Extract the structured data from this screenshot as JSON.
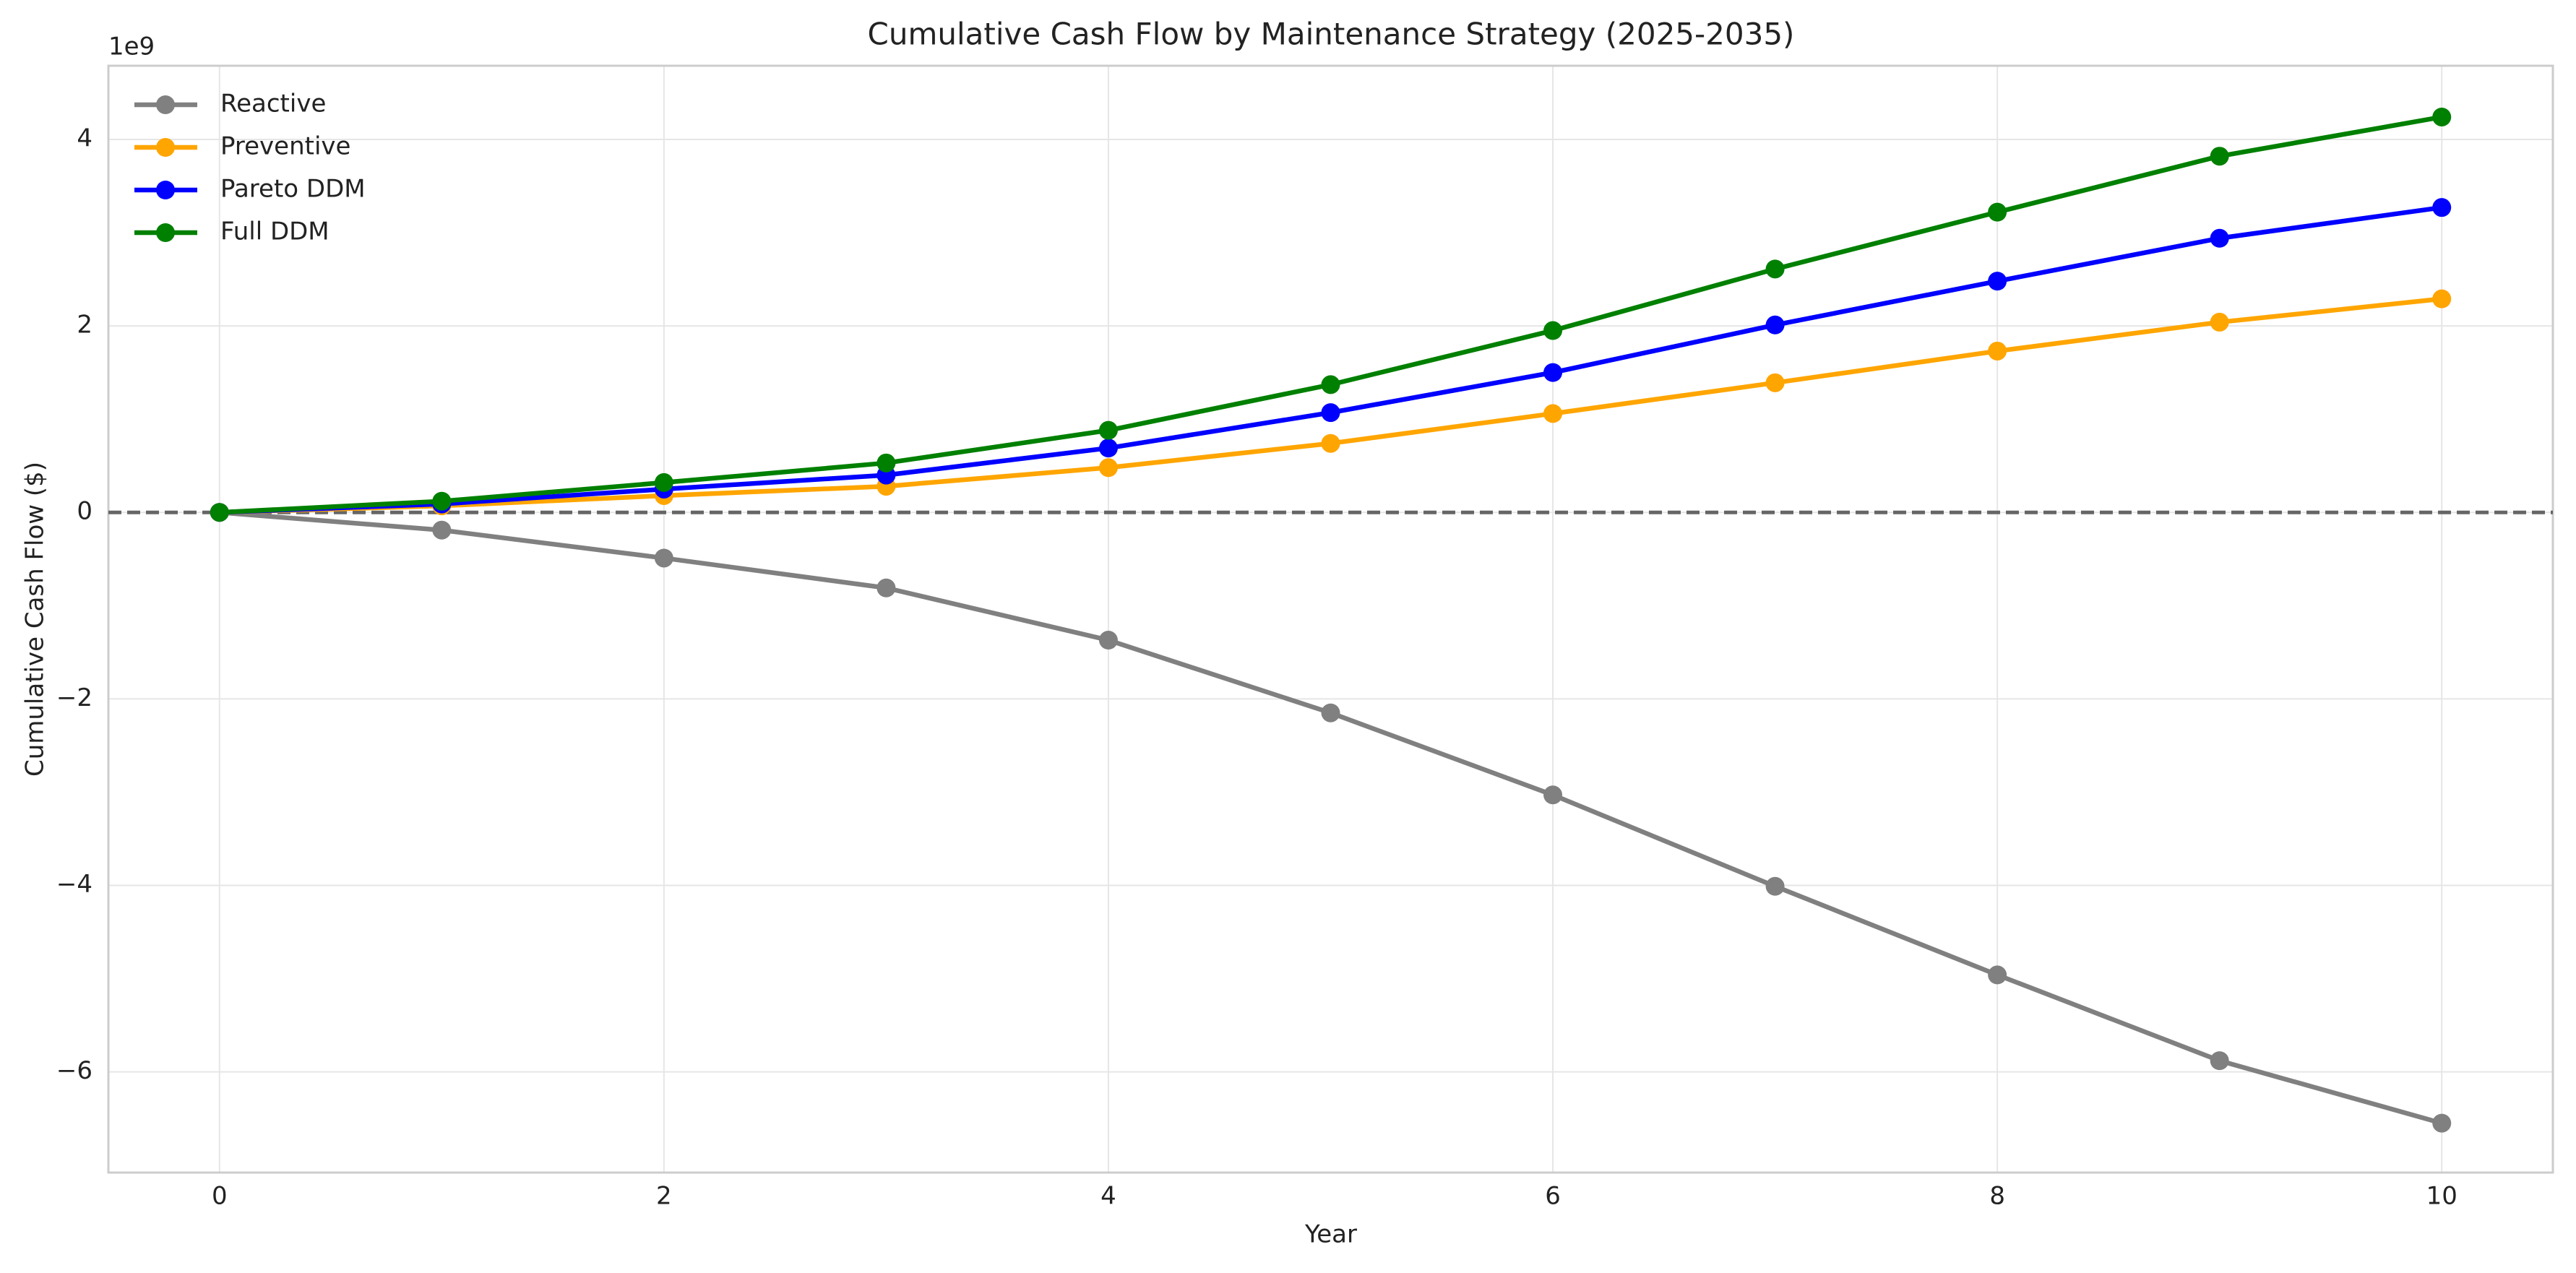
{
  "chart_data": {
    "type": "line",
    "title": "Cumulative Cash Flow by Maintenance Strategy (2025-2035)",
    "xlabel": "Year",
    "ylabel": "Cumulative Cash Flow ($)",
    "y_offset_label": "1e9",
    "x": [
      0,
      1,
      2,
      3,
      4,
      5,
      6,
      7,
      8,
      9,
      10
    ],
    "series": [
      {
        "name": "Reactive",
        "color": "#808080",
        "values": [
          0,
          -190000000,
          -490000000,
          -810000000,
          -1370000000,
          -2150000000,
          -3030000000,
          -4010000000,
          -4960000000,
          -5880000000,
          -6550000000
        ]
      },
      {
        "name": "Preventive",
        "color": "#ffa500",
        "values": [
          0,
          70000000,
          180000000,
          280000000,
          480000000,
          740000000,
          1060000000,
          1390000000,
          1730000000,
          2040000000,
          2290000000
        ]
      },
      {
        "name": "Pareto DDM",
        "color": "#0000ff",
        "values": [
          0,
          90000000,
          250000000,
          400000000,
          690000000,
          1070000000,
          1500000000,
          2010000000,
          2480000000,
          2940000000,
          3270000000
        ]
      },
      {
        "name": "Full DDM",
        "color": "#008000",
        "values": [
          0,
          120000000,
          320000000,
          530000000,
          880000000,
          1370000000,
          1950000000,
          2610000000,
          3220000000,
          3820000000,
          4240000000
        ]
      }
    ],
    "reference_line": {
      "value": 0,
      "color": "#666666"
    },
    "xlim": [
      -0.5,
      10.5
    ],
    "xticks": [
      0,
      2,
      4,
      6,
      8,
      10
    ],
    "ylim": [
      -7080000000,
      4790000000
    ],
    "yticks": [
      {
        "value": -6000000000,
        "label": "−6"
      },
      {
        "value": -4000000000,
        "label": "−4"
      },
      {
        "value": -2000000000,
        "label": "−2"
      },
      {
        "value": 0,
        "label": "0"
      },
      {
        "value": 2000000000,
        "label": "2"
      },
      {
        "value": 4000000000,
        "label": "4"
      }
    ],
    "grid": true,
    "legend": "upper left"
  }
}
